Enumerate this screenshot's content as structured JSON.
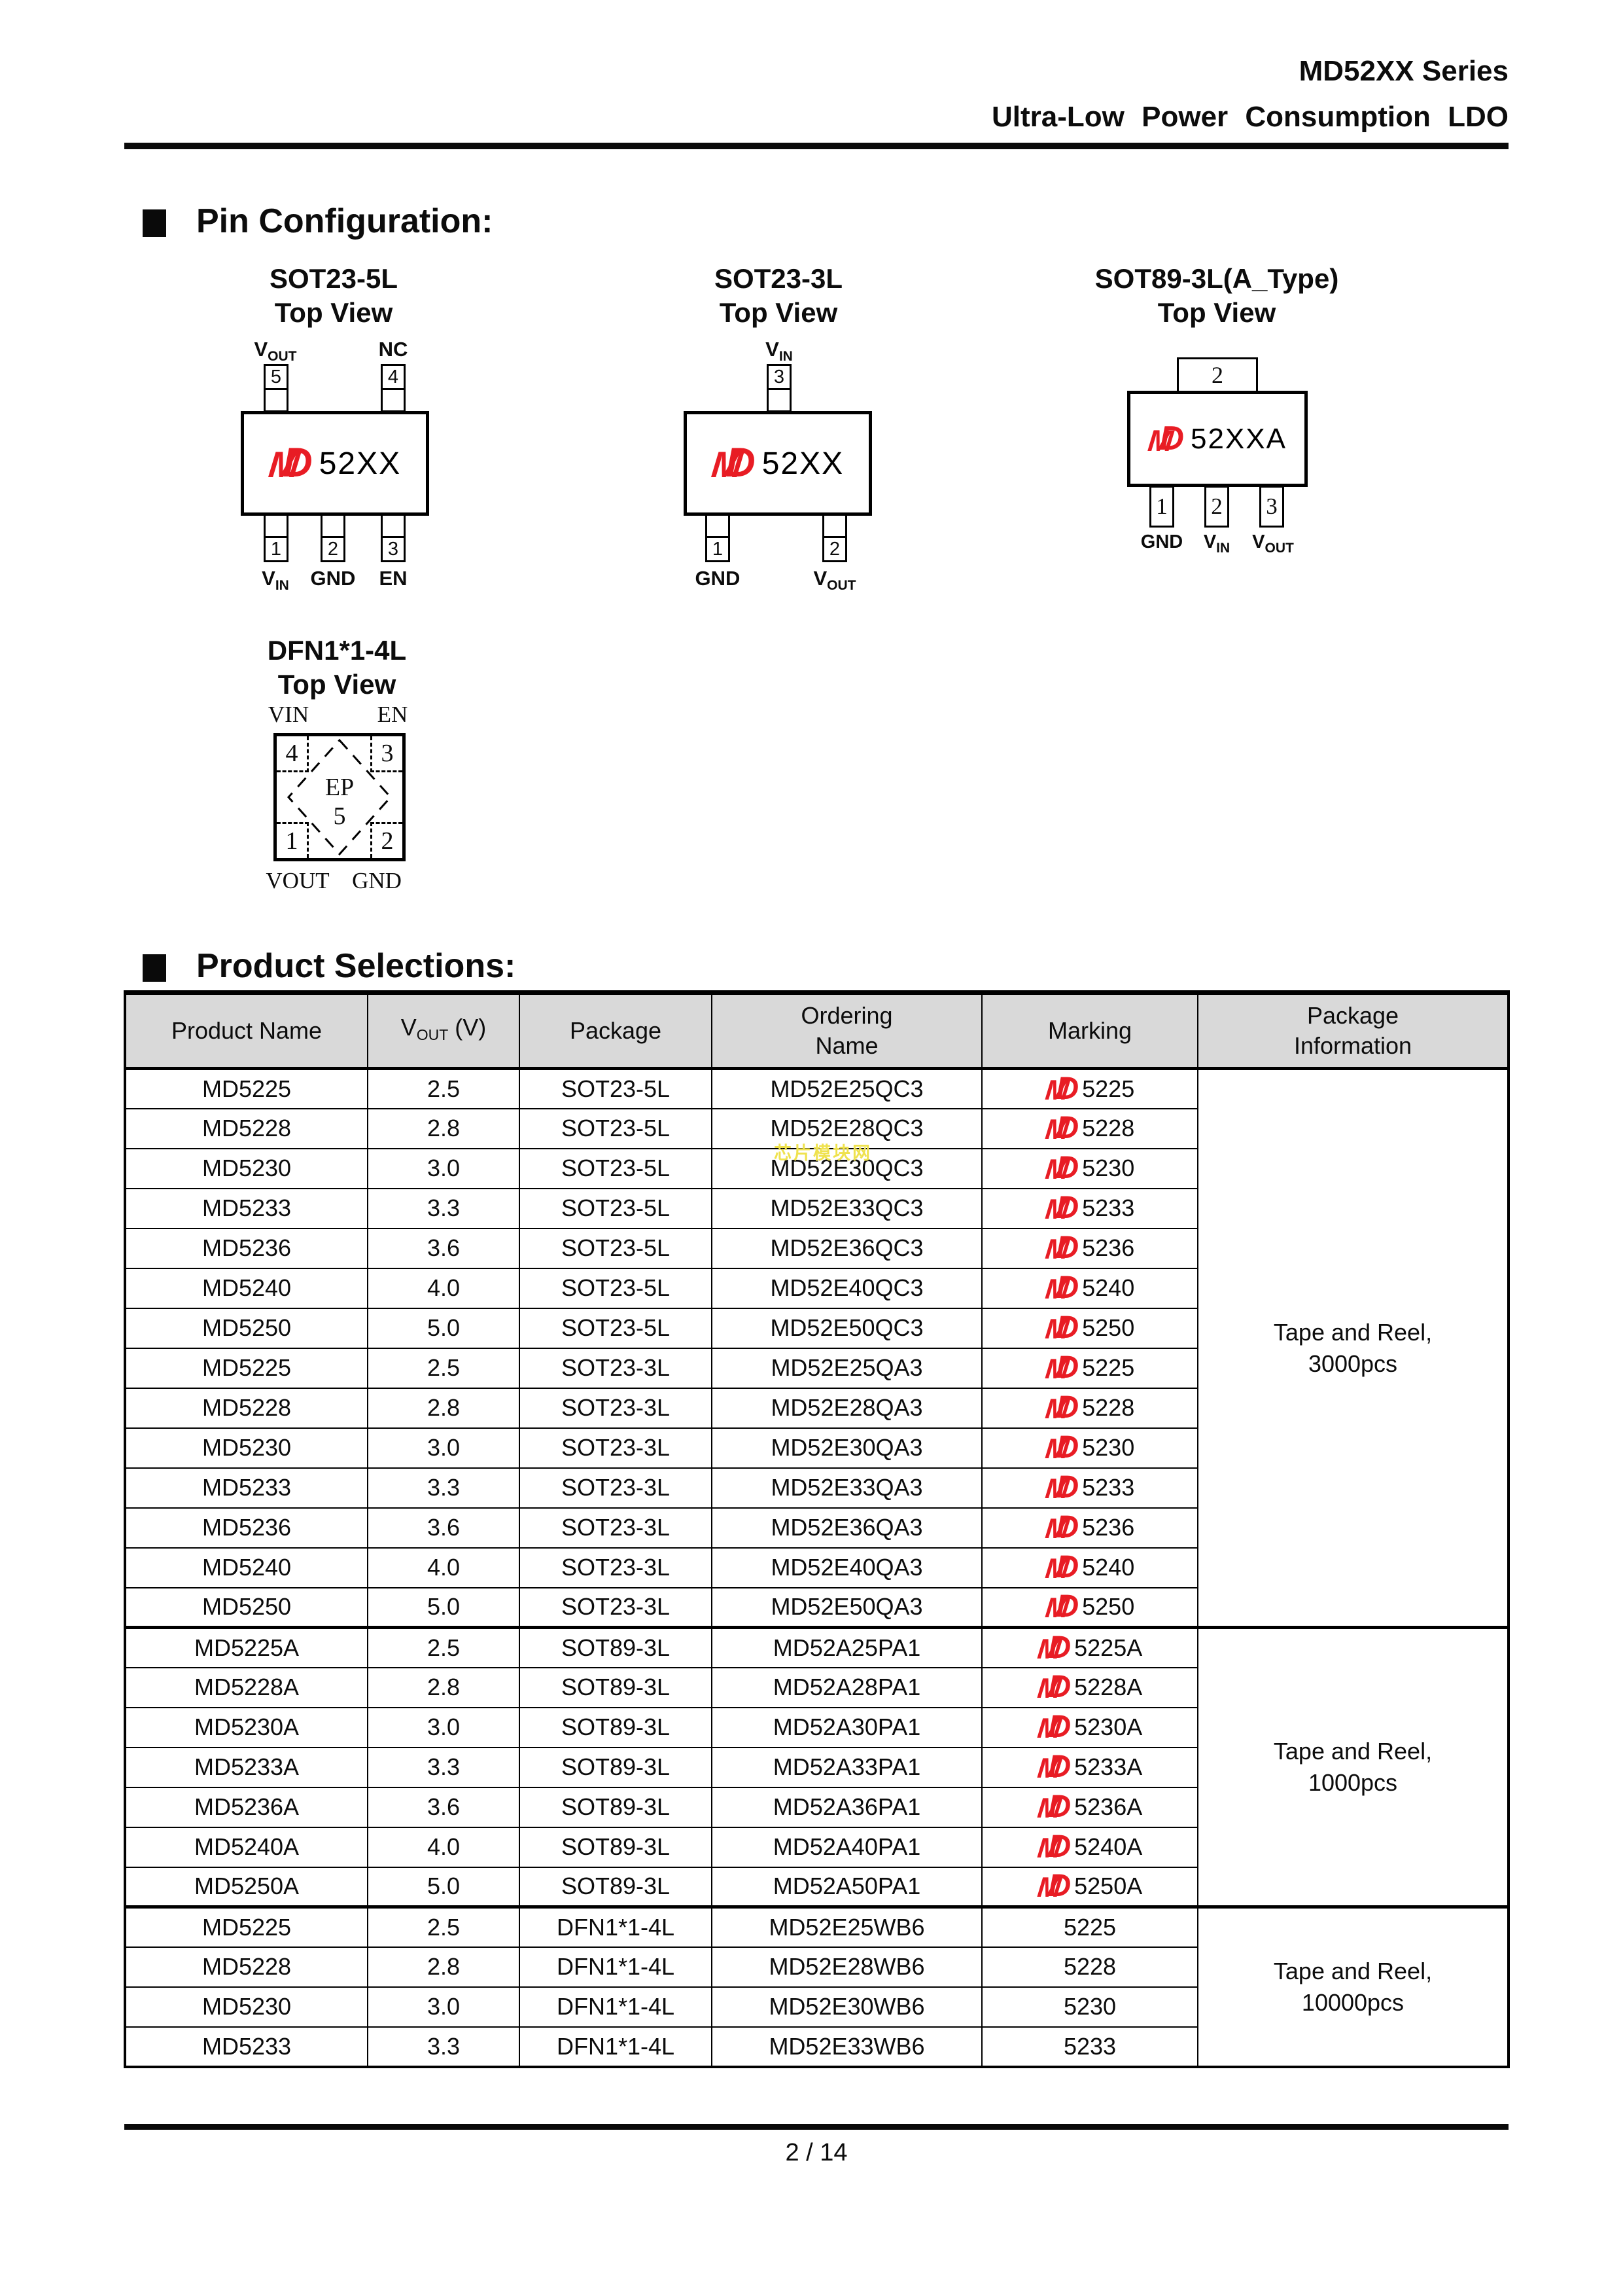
{
  "header": {
    "title_line1": "MD52XX Series",
    "title_line2": "Ultra-Low Power Consumption LDO"
  },
  "sections": {
    "pin_config": "Pin Configuration:",
    "product_selections": "Product Selections:"
  },
  "colors": {
    "logo_red": "#e81c24",
    "table_header_gray": "#d9d9d9",
    "watermark_yellow": "#efe24e"
  },
  "watermark": "芯片模块网",
  "logo": {
    "m": "M",
    "d": "D"
  },
  "diagrams": {
    "sot23_5l": {
      "title": "SOT23-5L",
      "subtitle": "Top View",
      "chip_label": "52XX",
      "top_pins": [
        {
          "num": "5",
          "label": "V",
          "sub": "OUT"
        },
        {
          "num": "4",
          "label": "NC",
          "sub": ""
        }
      ],
      "bottom_pins": [
        {
          "num": "1",
          "label": "V",
          "sub": "IN"
        },
        {
          "num": "2",
          "label": "GND",
          "sub": ""
        },
        {
          "num": "3",
          "label": "EN",
          "sub": ""
        }
      ]
    },
    "sot23_3l": {
      "title": "SOT23-3L",
      "subtitle": "Top View",
      "chip_label": "52XX",
      "top_pins": [
        {
          "num": "3",
          "label": "V",
          "sub": "IN"
        }
      ],
      "bottom_pins": [
        {
          "num": "1",
          "label": "GND",
          "sub": ""
        },
        {
          "num": "2",
          "label": "V",
          "sub": "OUT"
        }
      ]
    },
    "sot89_3l": {
      "title": "SOT89-3L(A_Type)",
      "subtitle": "Top View",
      "chip_label": "52XXA",
      "tab_num": "2",
      "bottom_pins": [
        {
          "num": "1",
          "label": "GND",
          "sub": ""
        },
        {
          "num": "2",
          "label": "V",
          "sub": "IN"
        },
        {
          "num": "3",
          "label": "V",
          "sub": "OUT"
        }
      ]
    },
    "dfn": {
      "title": "DFN1*1-4L",
      "subtitle": "Top View",
      "top_labels": [
        "VIN",
        "EN"
      ],
      "bottom_labels": [
        "VOUT",
        "GND"
      ],
      "corners": {
        "tl": "4",
        "tr": "3",
        "bl": "1",
        "br": "2"
      },
      "ep": "EP",
      "ep_num": "5"
    }
  },
  "table": {
    "headers": {
      "product": "Product Name",
      "vout": {
        "v": "V",
        "sub": "OUT",
        "unit": "(V)"
      },
      "package": "Package",
      "ordering1": "Ordering",
      "ordering2": "Name",
      "marking": "Marking",
      "pkg1": "Package",
      "pkg2": "Information"
    },
    "groups": [
      {
        "line1": "Tape and Reel,",
        "line2": "3000pcs",
        "rows": 14
      },
      {
        "line1": "Tape and Reel,",
        "line2": "1000pcs",
        "rows": 7
      },
      {
        "line1": "Tape and Reel,",
        "line2": "10000pcs",
        "rows": 4
      }
    ],
    "rows": [
      {
        "product": "MD5225",
        "vout": "2.5",
        "pkg": "SOT23-5L",
        "ordering": "MD52E25QC3",
        "marking": "5225",
        "logo": true,
        "group": 0
      },
      {
        "product": "MD5228",
        "vout": "2.8",
        "pkg": "SOT23-5L",
        "ordering": "MD52E28QC3",
        "marking": "5228",
        "logo": true
      },
      {
        "product": "MD5230",
        "vout": "3.0",
        "pkg": "SOT23-5L",
        "ordering": "MD52E30QC3",
        "marking": "5230",
        "logo": true
      },
      {
        "product": "MD5233",
        "vout": "3.3",
        "pkg": "SOT23-5L",
        "ordering": "MD52E33QC3",
        "marking": "5233",
        "logo": true
      },
      {
        "product": "MD5236",
        "vout": "3.6",
        "pkg": "SOT23-5L",
        "ordering": "MD52E36QC3",
        "marking": "5236",
        "logo": true
      },
      {
        "product": "MD5240",
        "vout": "4.0",
        "pkg": "SOT23-5L",
        "ordering": "MD52E40QC3",
        "marking": "5240",
        "logo": true
      },
      {
        "product": "MD5250",
        "vout": "5.0",
        "pkg": "SOT23-5L",
        "ordering": "MD52E50QC3",
        "marking": "5250",
        "logo": true
      },
      {
        "product": "MD5225",
        "vout": "2.5",
        "pkg": "SOT23-3L",
        "ordering": "MD52E25QA3",
        "marking": "5225",
        "logo": true
      },
      {
        "product": "MD5228",
        "vout": "2.8",
        "pkg": "SOT23-3L",
        "ordering": "MD52E28QA3",
        "marking": "5228",
        "logo": true
      },
      {
        "product": "MD5230",
        "vout": "3.0",
        "pkg": "SOT23-3L",
        "ordering": "MD52E30QA3",
        "marking": "5230",
        "logo": true
      },
      {
        "product": "MD5233",
        "vout": "3.3",
        "pkg": "SOT23-3L",
        "ordering": "MD52E33QA3",
        "marking": "5233",
        "logo": true
      },
      {
        "product": "MD5236",
        "vout": "3.6",
        "pkg": "SOT23-3L",
        "ordering": "MD52E36QA3",
        "marking": "5236",
        "logo": true
      },
      {
        "product": "MD5240",
        "vout": "4.0",
        "pkg": "SOT23-3L",
        "ordering": "MD52E40QA3",
        "marking": "5240",
        "logo": true
      },
      {
        "product": "MD5250",
        "vout": "5.0",
        "pkg": "SOT23-3L",
        "ordering": "MD52E50QA3",
        "marking": "5250",
        "logo": true
      },
      {
        "product": "MD5225A",
        "vout": "2.5",
        "pkg": "SOT89-3L",
        "ordering": "MD52A25PA1",
        "marking": "5225A",
        "logo": true,
        "group": 1,
        "thick": true
      },
      {
        "product": "MD5228A",
        "vout": "2.8",
        "pkg": "SOT89-3L",
        "ordering": "MD52A28PA1",
        "marking": "5228A",
        "logo": true
      },
      {
        "product": "MD5230A",
        "vout": "3.0",
        "pkg": "SOT89-3L",
        "ordering": "MD52A30PA1",
        "marking": "5230A",
        "logo": true
      },
      {
        "product": "MD5233A",
        "vout": "3.3",
        "pkg": "SOT89-3L",
        "ordering": "MD52A33PA1",
        "marking": "5233A",
        "logo": true
      },
      {
        "product": "MD5236A",
        "vout": "3.6",
        "pkg": "SOT89-3L",
        "ordering": "MD52A36PA1",
        "marking": "5236A",
        "logo": true
      },
      {
        "product": "MD5240A",
        "vout": "4.0",
        "pkg": "SOT89-3L",
        "ordering": "MD52A40PA1",
        "marking": "5240A",
        "logo": true
      },
      {
        "product": "MD5250A",
        "vout": "5.0",
        "pkg": "SOT89-3L",
        "ordering": "MD52A50PA1",
        "marking": "5250A",
        "logo": true
      },
      {
        "product": "MD5225",
        "vout": "2.5",
        "pkg": "DFN1*1-4L",
        "ordering": "MD52E25WB6",
        "marking": "5225",
        "logo": false,
        "group": 2,
        "thick": true
      },
      {
        "product": "MD5228",
        "vout": "2.8",
        "pkg": "DFN1*1-4L",
        "ordering": "MD52E28WB6",
        "marking": "5228",
        "logo": false
      },
      {
        "product": "MD5230",
        "vout": "3.0",
        "pkg": "DFN1*1-4L",
        "ordering": "MD52E30WB6",
        "marking": "5230",
        "logo": false
      },
      {
        "product": "MD5233",
        "vout": "3.3",
        "pkg": "DFN1*1-4L",
        "ordering": "MD52E33WB6",
        "marking": "5233",
        "logo": false
      }
    ]
  },
  "footer": {
    "page": "2 / 14"
  }
}
